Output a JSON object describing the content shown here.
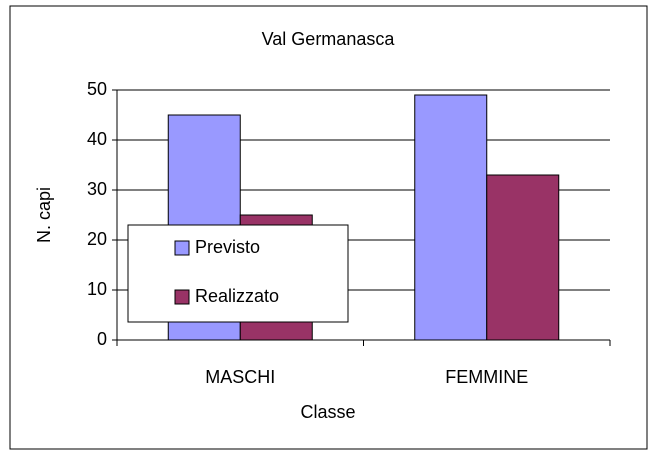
{
  "chart_data": {
    "type": "bar",
    "title": "Val Germanasca",
    "categories": [
      "MASCHI",
      "FEMMINE"
    ],
    "series": [
      {
        "name": "Previsto",
        "color": "#9999ff",
        "values": [
          45,
          49
        ]
      },
      {
        "name": "Realizzato",
        "color": "#993366",
        "values": [
          25,
          33
        ]
      }
    ],
    "x_label": "Classe",
    "y_label": "N. capi",
    "ylim": [
      0,
      50
    ],
    "yticks": [
      0,
      10,
      20,
      30,
      40,
      50
    ],
    "grid": true,
    "legend": "left"
  }
}
